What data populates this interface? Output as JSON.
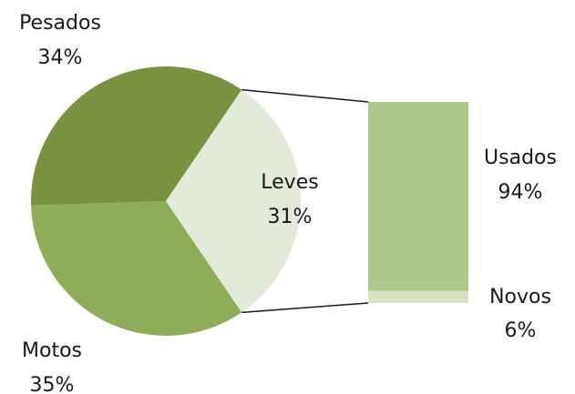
{
  "chart_data": {
    "type": "bar-of-pie",
    "title": "",
    "pie": {
      "slices": [
        {
          "name": "Pesados",
          "percent_label": "34%",
          "value": 34,
          "color": "#8fac58"
        },
        {
          "name": "Leves",
          "percent_label": "31%",
          "value": 31,
          "color": "#e4ead9"
        },
        {
          "name": "Motos",
          "percent_label": "35%",
          "value": 35,
          "color": "#78923f"
        }
      ],
      "exploded_slice": "Leves"
    },
    "bar": {
      "parent": "Leves",
      "segments": [
        {
          "name": "Usados",
          "percent_label": "94%",
          "value": 94,
          "color": "#adc689"
        },
        {
          "name": "Novos",
          "percent_label": "6%",
          "value": 6,
          "color": "#d6e2c4"
        }
      ]
    },
    "legend": "none",
    "connector_color": "#1a1a1a"
  }
}
